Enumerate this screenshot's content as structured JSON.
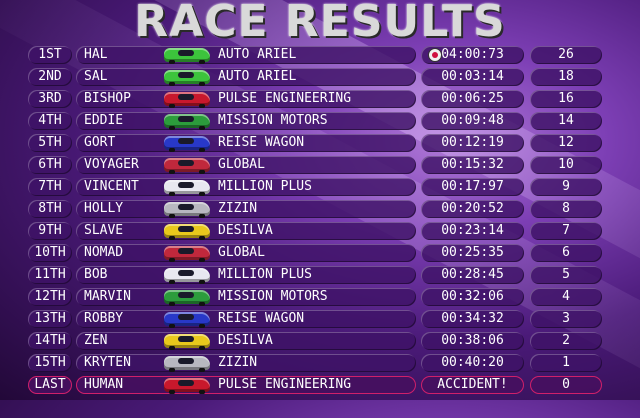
{
  "title": "RACE RESULTS",
  "results": [
    {
      "position": "1ST",
      "driver": "HAL",
      "team": "AUTO ARIEL",
      "time": "04:00:73",
      "points": "26",
      "car_color": "#3cc43c",
      "best_lap_icon": "stopwatch-icon"
    },
    {
      "position": "2ND",
      "driver": "SAL",
      "team": "AUTO ARIEL",
      "time": "00:03:14",
      "points": "18",
      "car_color": "#3cc43c"
    },
    {
      "position": "3RD",
      "driver": "BISHOP",
      "team": "PULSE ENGINEERING",
      "time": "00:06:25",
      "points": "16",
      "car_color": "#c8182c"
    },
    {
      "position": "4TH",
      "driver": "EDDIE",
      "team": "MISSION MOTORS",
      "time": "00:09:48",
      "points": "14",
      "car_color": "#2c9c3c"
    },
    {
      "position": "5TH",
      "driver": "GORT",
      "team": "REISE WAGON",
      "time": "00:12:19",
      "points": "12",
      "car_color": "#2838c8"
    },
    {
      "position": "6TH",
      "driver": "VOYAGER",
      "team": "GLOBAL",
      "time": "00:15:32",
      "points": "10",
      "car_color": "#c0283c"
    },
    {
      "position": "7TH",
      "driver": "VINCENT",
      "team": "MILLION PLUS",
      "time": "00:17:97",
      "points": "9",
      "car_color": "#e8e8f0"
    },
    {
      "position": "8TH",
      "driver": "HOLLY",
      "team": "ZIZIN",
      "time": "00:20:52",
      "points": "8",
      "car_color": "#b8b8c0"
    },
    {
      "position": "9TH",
      "driver": "SLAVE",
      "team": "DESILVA",
      "time": "00:23:14",
      "points": "7",
      "car_color": "#e8c81c"
    },
    {
      "position": "10TH",
      "driver": "NOMAD",
      "team": "GLOBAL",
      "time": "00:25:35",
      "points": "6",
      "car_color": "#c0283c"
    },
    {
      "position": "11TH",
      "driver": "BOB",
      "team": "MILLION PLUS",
      "time": "00:28:45",
      "points": "5",
      "car_color": "#e8e8f0"
    },
    {
      "position": "12TH",
      "driver": "MARVIN",
      "team": "MISSION MOTORS",
      "time": "00:32:06",
      "points": "4",
      "car_color": "#2c9c3c"
    },
    {
      "position": "13TH",
      "driver": "ROBBY",
      "team": "REISE WAGON",
      "time": "00:34:32",
      "points": "3",
      "car_color": "#2838c8"
    },
    {
      "position": "14TH",
      "driver": "ZEN",
      "team": "DESILVA",
      "time": "00:38:06",
      "points": "2",
      "car_color": "#e8c81c"
    },
    {
      "position": "15TH",
      "driver": "KRYTEN",
      "team": "ZIZIN",
      "time": "00:40:20",
      "points": "1",
      "car_color": "#b8b8c0"
    },
    {
      "position": "LAST",
      "driver": "HUMAN",
      "team": "PULSE ENGINEERING",
      "time": "ACCIDENT!",
      "points": "0",
      "car_color": "#c8182c"
    }
  ]
}
